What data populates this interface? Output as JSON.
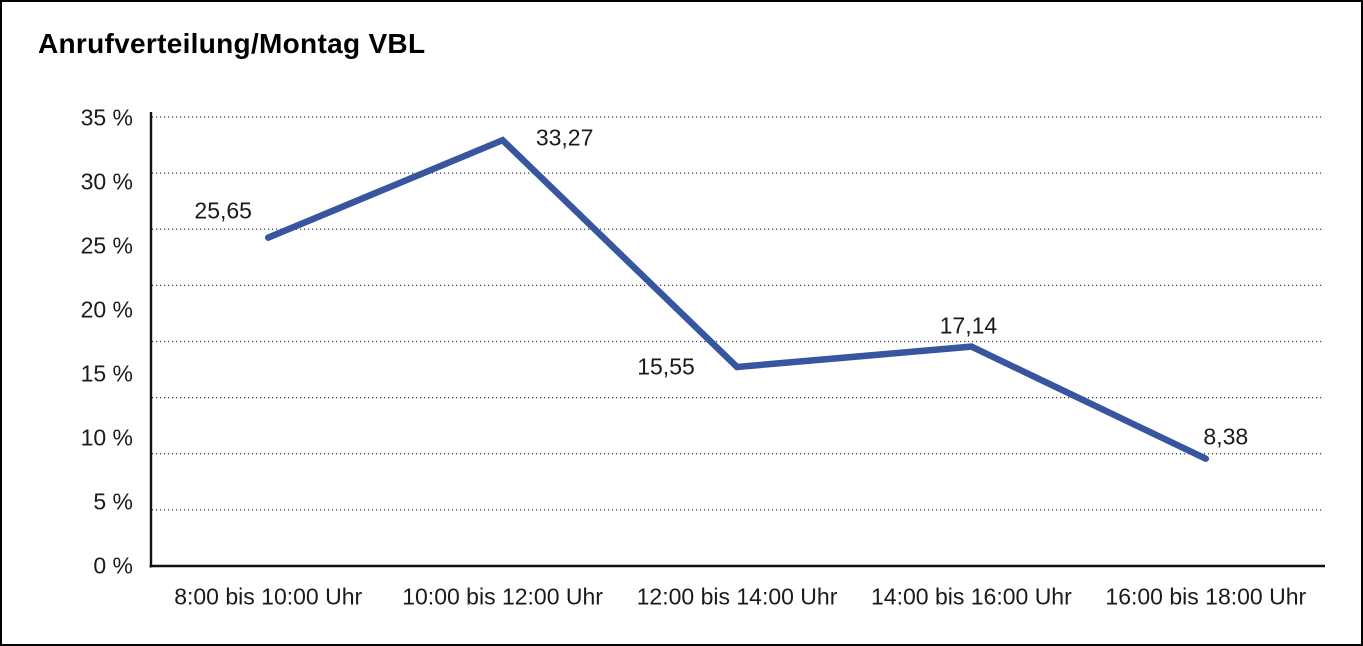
{
  "title": "Anrufverteilung/Montag VBL",
  "window": {
    "background": "#ffffff",
    "border_color": "#000000"
  },
  "chart_data": {
    "type": "line",
    "title": "Anrufverteilung/Montag VBL",
    "categories": [
      "8:00 bis 10:00 Uhr",
      "10:00 bis 12:00 Uhr",
      "12:00 bis 14:00 Uhr",
      "14:00 bis 16:00 Uhr",
      "16:00 bis 18:00 Uhr"
    ],
    "values": [
      25.65,
      33.27,
      15.55,
      17.14,
      8.38
    ],
    "point_labels": [
      "25,65",
      "33,27",
      "15,55",
      "17,14",
      "8,38"
    ],
    "point_label_anchors": [
      "upper-left",
      "right",
      "left",
      "above",
      "upper-right"
    ],
    "y_ticks": [
      "35 %",
      "30 %",
      "25 %",
      "20 %",
      "15 %",
      "10 %",
      "5 %",
      "0 %"
    ],
    "y_tick_values": [
      35,
      30,
      25,
      20,
      15,
      10,
      5,
      0
    ],
    "ylim": [
      0,
      35
    ],
    "xlabel": "",
    "ylabel": "",
    "grid": "horizontal-dotted",
    "gridline_count": 9,
    "legend": "none",
    "line_color": "#37569F",
    "axis_color": "#111111",
    "gridline_color": "#3c3c3c",
    "text_color": "#1a1a1a"
  }
}
